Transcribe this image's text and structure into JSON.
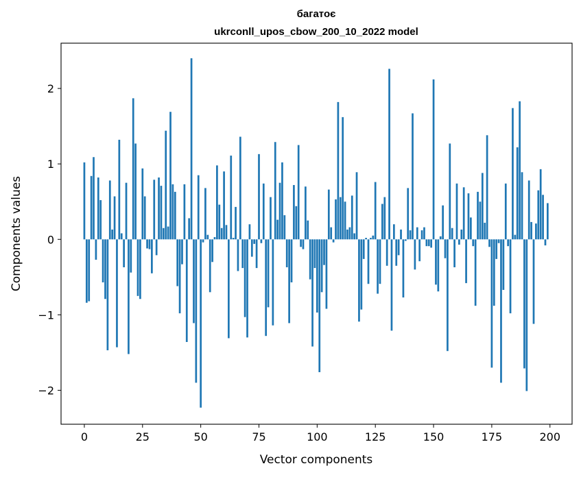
{
  "chart_data": {
    "type": "bar",
    "title_line1": "багатоє",
    "title_line2": "ukrconll_upos_cbow_200_10_2022 model",
    "xlabel": "Vector components",
    "ylabel": "Components values",
    "xlim": [
      -10,
      209.5
    ],
    "ylim": [
      -2.45,
      2.6
    ],
    "xticks": [
      0,
      25,
      50,
      75,
      100,
      125,
      150,
      175,
      200
    ],
    "xtick_labels": [
      "0",
      "25",
      "50",
      "75",
      "100",
      "125",
      "150",
      "175",
      "200"
    ],
    "yticks": [
      -2,
      -1,
      0,
      1,
      2
    ],
    "ytick_labels": [
      "−2",
      "−1",
      "0",
      "1",
      "2"
    ],
    "color": "#1f77b4",
    "grid": false,
    "values": [
      1.02,
      -0.84,
      -0.82,
      0.84,
      1.09,
      -0.27,
      0.82,
      0.52,
      -0.57,
      -0.79,
      -1.47,
      0.78,
      0.13,
      0.57,
      -1.43,
      1.32,
      0.08,
      -0.37,
      0.75,
      -1.52,
      -0.44,
      1.87,
      1.27,
      -0.75,
      -0.79,
      0.94,
      0.57,
      -0.12,
      -0.13,
      -0.45,
      0.79,
      -0.21,
      0.82,
      0.71,
      0.15,
      1.44,
      0.17,
      1.69,
      0.73,
      0.63,
      -0.62,
      -0.98,
      -0.33,
      0.73,
      -1.36,
      0.28,
      2.4,
      -1.11,
      -1.9,
      0.85,
      -2.23,
      -0.04,
      0.68,
      0.06,
      -0.7,
      -0.3,
      0.03,
      0.98,
      0.46,
      0.15,
      0.9,
      0.19,
      -1.31,
      1.11,
      0.02,
      0.43,
      -0.42,
      1.36,
      -0.38,
      -1.03,
      -1.3,
      0.2,
      -0.23,
      -0.06,
      -0.38,
      1.13,
      -0.05,
      0.74,
      -1.28,
      -0.9,
      0.56,
      -1.14,
      1.29,
      0.26,
      0.75,
      1.02,
      0.32,
      -0.37,
      -1.11,
      -0.57,
      0.72,
      0.44,
      1.25,
      -0.1,
      -0.13,
      0.7,
      0.25,
      -0.53,
      -1.42,
      -0.38,
      -0.97,
      -1.76,
      -0.7,
      -0.34,
      -0.92,
      0.66,
      0.16,
      -0.04,
      0.53,
      1.82,
      0.56,
      1.62,
      0.5,
      0.13,
      0.16,
      0.58,
      0.08,
      0.89,
      -1.09,
      -0.93,
      -0.26,
      0.02,
      -0.59,
      0.02,
      0.05,
      0.76,
      -0.72,
      -0.59,
      0.47,
      0.56,
      -0.35,
      2.26,
      -1.21,
      0.2,
      -0.35,
      -0.21,
      0.13,
      -0.77,
      -0.02,
      0.68,
      0.12,
      1.67,
      -0.4,
      0.16,
      -0.29,
      0.12,
      0.16,
      -0.09,
      -0.09,
      -0.11,
      2.12,
      -0.6,
      -0.69,
      0.04,
      0.45,
      -0.25,
      -1.48,
      1.27,
      0.15,
      -0.37,
      0.74,
      -0.07,
      0.13,
      0.69,
      -0.58,
      0.61,
      0.29,
      -0.09,
      -0.88,
      0.63,
      0.5,
      0.88,
      0.22,
      1.38,
      -0.1,
      -1.7,
      -0.88,
      -0.26,
      -0.05,
      -1.9,
      -0.67,
      0.74,
      -0.09,
      -0.98,
      1.74,
      0.06,
      1.22,
      1.83,
      0.89,
      -1.71,
      -2.01,
      0.78,
      0.23,
      -1.12,
      0.21,
      0.65,
      0.93,
      0.59,
      -0.08,
      0.48
    ]
  }
}
